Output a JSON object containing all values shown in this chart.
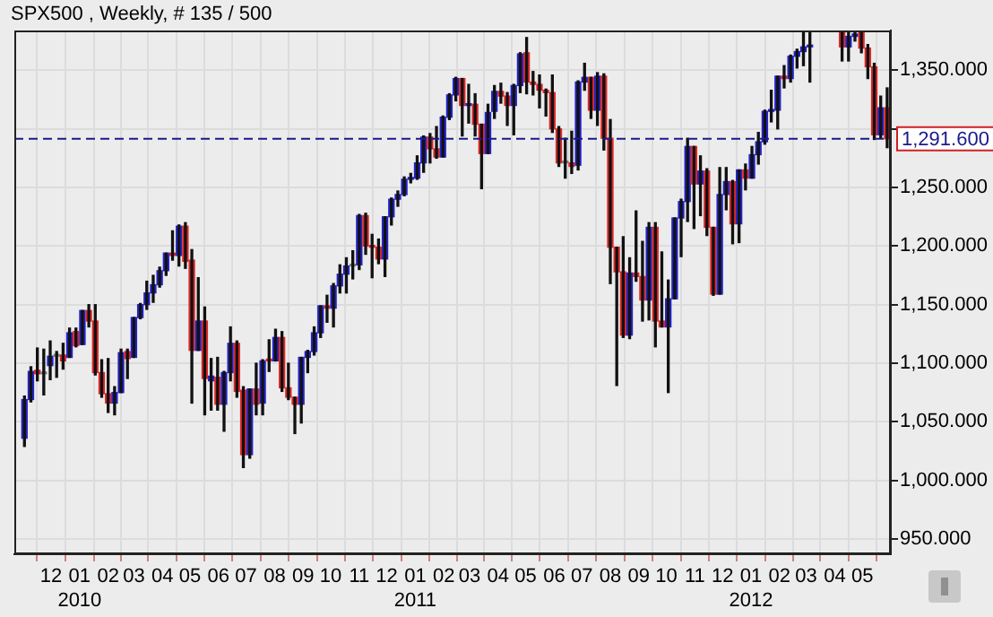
{
  "chart_data": {
    "type": "candlestick",
    "title": "SPX500 , Weekly, # 135 / 500",
    "x": [
      "2009-11-02",
      "2009-11-09",
      "2009-11-16",
      "2009-11-23",
      "2009-11-30",
      "2009-12-07",
      "2009-12-14",
      "2009-12-21",
      "2009-12-28",
      "2010-01-04",
      "2010-01-11",
      "2010-01-18",
      "2010-01-25",
      "2010-02-01",
      "2010-02-08",
      "2010-02-15",
      "2010-02-22",
      "2010-03-01",
      "2010-03-08",
      "2010-03-15",
      "2010-03-22",
      "2010-03-29",
      "2010-04-05",
      "2010-04-12",
      "2010-04-19",
      "2010-04-26",
      "2010-05-03",
      "2010-05-10",
      "2010-05-17",
      "2010-05-24",
      "2010-05-31",
      "2010-06-07",
      "2010-06-14",
      "2010-06-21",
      "2010-06-28",
      "2010-07-05",
      "2010-07-12",
      "2010-07-19",
      "2010-07-26",
      "2010-08-02",
      "2010-08-09",
      "2010-08-16",
      "2010-08-23",
      "2010-08-30",
      "2010-09-06",
      "2010-09-13",
      "2010-09-20",
      "2010-09-27",
      "2010-10-04",
      "2010-10-11",
      "2010-10-18",
      "2010-10-25",
      "2010-11-01",
      "2010-11-08",
      "2010-11-15",
      "2010-11-22",
      "2010-11-29",
      "2010-12-06",
      "2010-12-13",
      "2010-12-20",
      "2010-12-27",
      "2011-01-03",
      "2011-01-10",
      "2011-01-17",
      "2011-01-24",
      "2011-01-31",
      "2011-02-07",
      "2011-02-14",
      "2011-02-21",
      "2011-02-28",
      "2011-03-07",
      "2011-03-14",
      "2011-03-21",
      "2011-03-28",
      "2011-04-04",
      "2011-04-11",
      "2011-04-18",
      "2011-04-25",
      "2011-05-02",
      "2011-05-09",
      "2011-05-16",
      "2011-05-23",
      "2011-05-30",
      "2011-06-06",
      "2011-06-13",
      "2011-06-20",
      "2011-06-27",
      "2011-07-04",
      "2011-07-11",
      "2011-07-18",
      "2011-07-25",
      "2011-08-01",
      "2011-08-08",
      "2011-08-15",
      "2011-08-22",
      "2011-08-29",
      "2011-09-05",
      "2011-09-12",
      "2011-09-19",
      "2011-09-26",
      "2011-10-03",
      "2011-10-10",
      "2011-10-17",
      "2011-10-24",
      "2011-10-31",
      "2011-11-07",
      "2011-11-14",
      "2011-11-21",
      "2011-11-28",
      "2011-12-05",
      "2011-12-12",
      "2011-12-19",
      "2011-12-26",
      "2012-01-02",
      "2012-01-09",
      "2012-01-16",
      "2012-01-23",
      "2012-01-30",
      "2012-02-06",
      "2012-02-13",
      "2012-02-20",
      "2012-02-27",
      "2012-03-05",
      "2012-04-09",
      "2012-04-16",
      "2012-04-23",
      "2012-04-30",
      "2012-05-07",
      "2012-05-14",
      "2012-05-21",
      "2012-05-28"
    ],
    "ohlc": [
      [
        1036,
        1072,
        1029,
        1069
      ],
      [
        1069,
        1097,
        1067,
        1093
      ],
      [
        1094,
        1113,
        1085,
        1091
      ],
      [
        1091,
        1112,
        1073,
        1091
      ],
      [
        1098,
        1119,
        1086,
        1106
      ],
      [
        1106,
        1110,
        1088,
        1106
      ],
      [
        1107,
        1117,
        1095,
        1102
      ],
      [
        1105,
        1130,
        1105,
        1126
      ],
      [
        1127,
        1130,
        1114,
        1115
      ],
      [
        1116,
        1145,
        1116,
        1145
      ],
      [
        1145,
        1150,
        1131,
        1136
      ],
      [
        1136,
        1150,
        1090,
        1092
      ],
      [
        1092,
        1103,
        1071,
        1074
      ],
      [
        1074,
        1104,
        1058,
        1066
      ],
      [
        1066,
        1080,
        1056,
        1075
      ],
      [
        1075,
        1112,
        1075,
        1109
      ],
      [
        1110,
        1112,
        1087,
        1104
      ],
      [
        1105,
        1139,
        1105,
        1139
      ],
      [
        1139,
        1151,
        1138,
        1150
      ],
      [
        1150,
        1170,
        1146,
        1160
      ],
      [
        1160,
        1175,
        1152,
        1167
      ],
      [
        1167,
        1182,
        1165,
        1179
      ],
      [
        1179,
        1194,
        1175,
        1194
      ],
      [
        1194,
        1213,
        1188,
        1192
      ],
      [
        1192,
        1218,
        1183,
        1217
      ],
      [
        1217,
        1220,
        1181,
        1187
      ],
      [
        1188,
        1197,
        1066,
        1111
      ],
      [
        1111,
        1173,
        1111,
        1136
      ],
      [
        1136,
        1148,
        1056,
        1087
      ],
      [
        1085,
        1104,
        1060,
        1089
      ],
      [
        1088,
        1105,
        1060,
        1065
      ],
      [
        1065,
        1093,
        1042,
        1092
      ],
      [
        1092,
        1131,
        1085,
        1117
      ],
      [
        1117,
        1119,
        1071,
        1076
      ],
      [
        1077,
        1080,
        1011,
        1022
      ],
      [
        1022,
        1078,
        1019,
        1078
      ],
      [
        1078,
        1100,
        1056,
        1065
      ],
      [
        1066,
        1103,
        1056,
        1102
      ],
      [
        1103,
        1120,
        1093,
        1102
      ],
      [
        1102,
        1129,
        1102,
        1122
      ],
      [
        1122,
        1127,
        1076,
        1079
      ],
      [
        1079,
        1100,
        1069,
        1071
      ],
      [
        1071,
        1071,
        1040,
        1065
      ],
      [
        1065,
        1105,
        1049,
        1105
      ],
      [
        1105,
        1111,
        1092,
        1110
      ],
      [
        1110,
        1131,
        1107,
        1126
      ],
      [
        1126,
        1149,
        1122,
        1149
      ],
      [
        1149,
        1158,
        1135,
        1147
      ],
      [
        1147,
        1168,
        1131,
        1166
      ],
      [
        1166,
        1184,
        1160,
        1176
      ],
      [
        1176,
        1190,
        1160,
        1183
      ],
      [
        1183,
        1196,
        1172,
        1183
      ],
      [
        1184,
        1227,
        1180,
        1226
      ],
      [
        1226,
        1228,
        1193,
        1200
      ],
      [
        1200,
        1210,
        1173,
        1199
      ],
      [
        1199,
        1206,
        1185,
        1189
      ],
      [
        1189,
        1225,
        1174,
        1225
      ],
      [
        1225,
        1241,
        1218,
        1240
      ],
      [
        1240,
        1247,
        1234,
        1244
      ],
      [
        1244,
        1259,
        1243,
        1257
      ],
      [
        1257,
        1262,
        1254,
        1258
      ],
      [
        1258,
        1277,
        1257,
        1271
      ],
      [
        1271,
        1294,
        1263,
        1293
      ],
      [
        1293,
        1296,
        1271,
        1283
      ],
      [
        1283,
        1302,
        1275,
        1276
      ],
      [
        1276,
        1311,
        1276,
        1310
      ],
      [
        1310,
        1330,
        1308,
        1329
      ],
      [
        1329,
        1344,
        1324,
        1343
      ],
      [
        1343,
        1343,
        1294,
        1320
      ],
      [
        1320,
        1338,
        1305,
        1321
      ],
      [
        1321,
        1330,
        1294,
        1304
      ],
      [
        1304,
        1304,
        1249,
        1279
      ],
      [
        1279,
        1321,
        1279,
        1314
      ],
      [
        1315,
        1337,
        1309,
        1332
      ],
      [
        1332,
        1339,
        1322,
        1328
      ],
      [
        1328,
        1331,
        1303,
        1320
      ],
      [
        1320,
        1338,
        1295,
        1337
      ],
      [
        1337,
        1365,
        1331,
        1364
      ],
      [
        1365,
        1378,
        1330,
        1340
      ],
      [
        1340,
        1349,
        1329,
        1338
      ],
      [
        1338,
        1346,
        1318,
        1333
      ],
      [
        1333,
        1334,
        1311,
        1331
      ],
      [
        1331,
        1346,
        1297,
        1300
      ],
      [
        1300,
        1302,
        1268,
        1271
      ],
      [
        1271,
        1292,
        1258,
        1271
      ],
      [
        1271,
        1298,
        1262,
        1268
      ],
      [
        1269,
        1341,
        1265,
        1340
      ],
      [
        1340,
        1356,
        1333,
        1344
      ],
      [
        1344,
        1344,
        1309,
        1316
      ],
      [
        1316,
        1348,
        1303,
        1345
      ],
      [
        1345,
        1347,
        1282,
        1292
      ],
      [
        1292,
        1308,
        1168,
        1199
      ],
      [
        1199,
        1199,
        1081,
        1178
      ],
      [
        1178,
        1208,
        1122,
        1124
      ],
      [
        1124,
        1190,
        1121,
        1177
      ],
      [
        1177,
        1230,
        1170,
        1174
      ],
      [
        1174,
        1204,
        1136,
        1154
      ],
      [
        1154,
        1220,
        1137,
        1216
      ],
      [
        1216,
        1220,
        1114,
        1136
      ],
      [
        1136,
        1195,
        1131,
        1131
      ],
      [
        1131,
        1171,
        1075,
        1155
      ],
      [
        1155,
        1224,
        1155,
        1224
      ],
      [
        1224,
        1240,
        1191,
        1238
      ],
      [
        1238,
        1292,
        1221,
        1285
      ],
      [
        1285,
        1285,
        1215,
        1253
      ],
      [
        1253,
        1277,
        1226,
        1264
      ],
      [
        1264,
        1266,
        1209,
        1216
      ],
      [
        1216,
        1216,
        1158,
        1159
      ],
      [
        1159,
        1267,
        1159,
        1244
      ],
      [
        1244,
        1267,
        1231,
        1255
      ],
      [
        1255,
        1256,
        1202,
        1219
      ],
      [
        1219,
        1265,
        1203,
        1265
      ],
      [
        1265,
        1270,
        1248,
        1258
      ],
      [
        1258,
        1285,
        1258,
        1278
      ],
      [
        1278,
        1297,
        1270,
        1289
      ],
      [
        1289,
        1316,
        1287,
        1315
      ],
      [
        1315,
        1333,
        1306,
        1316
      ],
      [
        1316,
        1345,
        1300,
        1345
      ],
      [
        1345,
        1354,
        1335,
        1343
      ],
      [
        1343,
        1363,
        1340,
        1362
      ],
      [
        1362,
        1368,
        1352,
        1366
      ],
      [
        1366,
        1383,
        1354,
        1370
      ],
      [
        1370,
        1383,
        1340,
        1371
      ],
      [
        1383,
        1383,
        1358,
        1370
      ],
      [
        1370,
        1383,
        1358,
        1379
      ],
      [
        1379,
        1383,
        1375,
        1381
      ],
      [
        1383,
        1383,
        1365,
        1369
      ],
      [
        1369,
        1372,
        1343,
        1353
      ],
      [
        1353,
        1356,
        1291,
        1295
      ],
      [
        1295,
        1328,
        1292,
        1318
      ],
      [
        1318,
        1335,
        1284,
        1291.6
      ]
    ],
    "colors": [
      "#2323c8",
      "#2323c8",
      "#dc2828",
      "#808080",
      "#2323c8",
      "#808080",
      "#dc2828",
      "#2323c8",
      "#dc2828",
      "#2323c8",
      "#dc2828",
      "#dc2828",
      "#dc2828",
      "#dc2828",
      "#2323c8",
      "#2323c8",
      "#dc2828",
      "#2323c8",
      "#2323c8",
      "#2323c8",
      "#2323c8",
      "#2323c8",
      "#2323c8",
      "#dc2828",
      "#2323c8",
      "#dc2828",
      "#dc2828",
      "#2323c8",
      "#dc2828",
      "#2323c8",
      "#dc2828",
      "#2323c8",
      "#2323c8",
      "#dc2828",
      "#dc2828",
      "#2323c8",
      "#dc2828",
      "#2323c8",
      "#dc2828",
      "#2323c8",
      "#dc2828",
      "#dc2828",
      "#dc2828",
      "#2323c8",
      "#2323c8",
      "#2323c8",
      "#2323c8",
      "#dc2828",
      "#2323c8",
      "#2323c8",
      "#2323c8",
      "#808080",
      "#2323c8",
      "#dc2828",
      "#dc2828",
      "#dc2828",
      "#2323c8",
      "#2323c8",
      "#2323c8",
      "#2323c8",
      "#2323c8",
      "#2323c8",
      "#2323c8",
      "#dc2828",
      "#dc2828",
      "#2323c8",
      "#2323c8",
      "#2323c8",
      "#dc2828",
      "#2323c8",
      "#dc2828",
      "#dc2828",
      "#2323c8",
      "#2323c8",
      "#dc2828",
      "#dc2828",
      "#2323c8",
      "#2323c8",
      "#dc2828",
      "#dc2828",
      "#dc2828",
      "#dc2828",
      "#dc2828",
      "#dc2828",
      "#808080",
      "#dc2828",
      "#2323c8",
      "#2323c8",
      "#dc2828",
      "#2323c8",
      "#dc2828",
      "#dc2828",
      "#dc2828",
      "#dc2828",
      "#2323c8",
      "#dc2828",
      "#dc2828",
      "#2323c8",
      "#dc2828",
      "#dc2828",
      "#2323c8",
      "#2323c8",
      "#2323c8",
      "#2323c8",
      "#dc2828",
      "#2323c8",
      "#dc2828",
      "#dc2828",
      "#2323c8",
      "#2323c8",
      "#dc2828",
      "#2323c8",
      "#dc2828",
      "#2323c8",
      "#2323c8",
      "#2323c8",
      "#2323c8",
      "#2323c8",
      "#dc2828",
      "#2323c8",
      "#2323c8",
      "#2323c8",
      "#2323c8",
      "#dc2828",
      "#2323c8",
      "#2323c8",
      "#dc2828",
      "#dc2828",
      "#dc2828",
      "#2323c8",
      "#dc2828"
    ],
    "xlim": [
      "2009-10-22",
      "2012-06-01"
    ],
    "xticks": [
      {
        "value": "2009-12-01",
        "label": "12"
      },
      {
        "value": "2010-01-01",
        "label": "01\n2010"
      },
      {
        "value": "2010-02-01",
        "label": "02"
      },
      {
        "value": "2010-03-01",
        "label": "03"
      },
      {
        "value": "2010-04-01",
        "label": "04"
      },
      {
        "value": "2010-05-01",
        "label": "05"
      },
      {
        "value": "2010-06-01",
        "label": "06"
      },
      {
        "value": "2010-07-01",
        "label": "07"
      },
      {
        "value": "2010-08-01",
        "label": "08"
      },
      {
        "value": "2010-09-01",
        "label": "09"
      },
      {
        "value": "2010-10-01",
        "label": "10"
      },
      {
        "value": "2010-11-01",
        "label": "11"
      },
      {
        "value": "2010-12-01",
        "label": "12"
      },
      {
        "value": "2011-01-01",
        "label": "01\n2011"
      },
      {
        "value": "2011-02-01",
        "label": "02"
      },
      {
        "value": "2011-03-01",
        "label": "03"
      },
      {
        "value": "2011-04-01",
        "label": "04"
      },
      {
        "value": "2011-05-01",
        "label": "05"
      },
      {
        "value": "2011-06-01",
        "label": "06"
      },
      {
        "value": "2011-07-01",
        "label": "07"
      },
      {
        "value": "2011-08-01",
        "label": "08"
      },
      {
        "value": "2011-09-01",
        "label": "09"
      },
      {
        "value": "2011-10-01",
        "label": "10"
      },
      {
        "value": "2011-11-01",
        "label": "11"
      },
      {
        "value": "2011-12-01",
        "label": "12"
      },
      {
        "value": "2012-01-01",
        "label": "01\n2012"
      },
      {
        "value": "2012-02-01",
        "label": "02"
      },
      {
        "value": "2012-03-01",
        "label": "03"
      },
      {
        "value": "2012-04-01",
        "label": "04"
      },
      {
        "value": "2012-05-01",
        "label": "05"
      }
    ],
    "ylim": [
      937,
      1384
    ],
    "yticks": [
      {
        "value": 950,
        "label": "950.000"
      },
      {
        "value": 1000,
        "label": "1,000.000"
      },
      {
        "value": 1050,
        "label": "1,050.000"
      },
      {
        "value": 1100,
        "label": "1,100.000"
      },
      {
        "value": 1150,
        "label": "1,150.000"
      },
      {
        "value": 1200,
        "label": "1,200.000"
      },
      {
        "value": 1250,
        "label": "1,250.000"
      },
      {
        "value": 1300,
        "label": null
      },
      {
        "value": 1350,
        "label": "1,350.000"
      }
    ],
    "ref_lines": [
      {
        "axis": "y",
        "value": 1291.6,
        "label": "1,291.600",
        "color": "#1a1a8c",
        "line_style": "dashed"
      }
    ],
    "grid": true
  }
}
